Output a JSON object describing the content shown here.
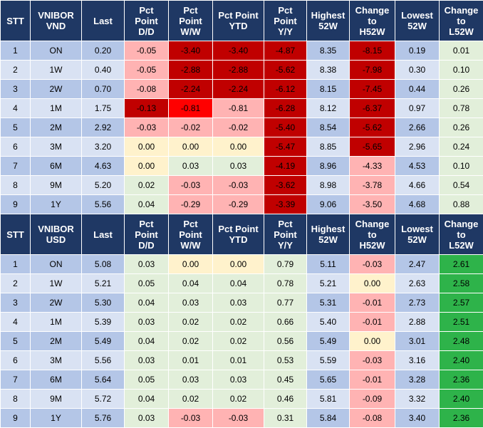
{
  "palette": {
    "header_bg": "#1f3864",
    "header_text": "#ffffff",
    "stripe_dark": "#b4c6e7",
    "stripe_light": "#d9e2f3",
    "neutral_yellow": "#fff2cc",
    "light_green": "#e2efda",
    "light_red": "#ffb3b3",
    "dark_red": "#c00000",
    "bright_red": "#ff0000",
    "bright_green": "#2eb34a"
  },
  "headers": [
    [
      "STT"
    ],
    [
      "VNIBOR",
      "VND"
    ],
    [
      "Last"
    ],
    [
      "Pct",
      "Point",
      "D/D"
    ],
    [
      "Pct",
      "Point",
      "W/W"
    ],
    [
      "Pct Point",
      "YTD"
    ],
    [
      "Pct",
      "Point",
      "Y/Y"
    ],
    [
      "Highest",
      "52W"
    ],
    [
      "Change",
      "to",
      "H52W"
    ],
    [
      "Lowest",
      "52W"
    ],
    [
      "Change",
      "to",
      "L52W"
    ]
  ],
  "headers_usd": [
    [
      "STT"
    ],
    [
      "VNIBOR",
      "USD"
    ],
    [
      "Last"
    ],
    [
      "Pct",
      "Point",
      "D/D"
    ],
    [
      "Pct",
      "Point",
      "W/W"
    ],
    [
      "Pct Point",
      "YTD"
    ],
    [
      "Pct",
      "Point",
      "Y/Y"
    ],
    [
      "Highest",
      "52W"
    ],
    [
      "Change",
      "to",
      "H52W"
    ],
    [
      "Lowest",
      "52W"
    ],
    [
      "Change",
      "to",
      "L52W"
    ]
  ],
  "vnd_rows": [
    {
      "stt": "1",
      "term": "ON",
      "last": "0.20",
      "dd": "-0.05",
      "ww": "-3.40",
      "ytd": "-3.40",
      "yy": "-4.87",
      "high": "8.35",
      "ch": "-8.15",
      "low": "0.19",
      "cl": "0.01"
    },
    {
      "stt": "2",
      "term": "1W",
      "last": "0.40",
      "dd": "-0.05",
      "ww": "-2.88",
      "ytd": "-2.88",
      "yy": "-5.62",
      "high": "8.38",
      "ch": "-7.98",
      "low": "0.30",
      "cl": "0.10"
    },
    {
      "stt": "3",
      "term": "2W",
      "last": "0.70",
      "dd": "-0.08",
      "ww": "-2.24",
      "ytd": "-2.24",
      "yy": "-6.12",
      "high": "8.15",
      "ch": "-7.45",
      "low": "0.44",
      "cl": "0.26"
    },
    {
      "stt": "4",
      "term": "1M",
      "last": "1.75",
      "dd": "-0.13",
      "ww": "-0.81",
      "ytd": "-0.81",
      "yy": "-6.28",
      "high": "8.12",
      "ch": "-6.37",
      "low": "0.97",
      "cl": "0.78"
    },
    {
      "stt": "5",
      "term": "2M",
      "last": "2.92",
      "dd": "-0.03",
      "ww": "-0.02",
      "ytd": "-0.02",
      "yy": "-5.40",
      "high": "8.54",
      "ch": "-5.62",
      "low": "2.66",
      "cl": "0.26"
    },
    {
      "stt": "6",
      "term": "3M",
      "last": "3.20",
      "dd": "0.00",
      "ww": "0.00",
      "ytd": "0.00",
      "yy": "-5.47",
      "high": "8.85",
      "ch": "-5.65",
      "low": "2.96",
      "cl": "0.24"
    },
    {
      "stt": "7",
      "term": "6M",
      "last": "4.63",
      "dd": "0.00",
      "ww": "0.03",
      "ytd": "0.03",
      "yy": "-4.19",
      "high": "8.96",
      "ch": "-4.33",
      "low": "4.53",
      "cl": "0.10"
    },
    {
      "stt": "8",
      "term": "9M",
      "last": "5.20",
      "dd": "0.02",
      "ww": "-0.03",
      "ytd": "-0.03",
      "yy": "-3.62",
      "high": "8.98",
      "ch": "-3.78",
      "low": "4.66",
      "cl": "0.54"
    },
    {
      "stt": "9",
      "term": "1Y",
      "last": "5.56",
      "dd": "0.04",
      "ww": "-0.29",
      "ytd": "-0.29",
      "yy": "-3.39",
      "high": "9.06",
      "ch": "-3.50",
      "low": "4.68",
      "cl": "0.88"
    }
  ],
  "usd_rows": [
    {
      "stt": "1",
      "term": "ON",
      "last": "5.08",
      "dd": "0.03",
      "ww": "0.00",
      "ytd": "0.00",
      "yy": "0.79",
      "high": "5.11",
      "ch": "-0.03",
      "low": "2.47",
      "cl": "2.61"
    },
    {
      "stt": "2",
      "term": "1W",
      "last": "5.21",
      "dd": "0.05",
      "ww": "0.04",
      "ytd": "0.04",
      "yy": "0.78",
      "high": "5.21",
      "ch": "0.00",
      "low": "2.63",
      "cl": "2.58"
    },
    {
      "stt": "3",
      "term": "2W",
      "last": "5.30",
      "dd": "0.04",
      "ww": "0.03",
      "ytd": "0.03",
      "yy": "0.77",
      "high": "5.31",
      "ch": "-0.01",
      "low": "2.73",
      "cl": "2.57"
    },
    {
      "stt": "4",
      "term": "1M",
      "last": "5.39",
      "dd": "0.03",
      "ww": "0.02",
      "ytd": "0.02",
      "yy": "0.66",
      "high": "5.40",
      "ch": "-0.01",
      "low": "2.88",
      "cl": "2.51"
    },
    {
      "stt": "5",
      "term": "2M",
      "last": "5.49",
      "dd": "0.04",
      "ww": "0.02",
      "ytd": "0.02",
      "yy": "0.56",
      "high": "5.49",
      "ch": "0.00",
      "low": "3.01",
      "cl": "2.48"
    },
    {
      "stt": "6",
      "term": "3M",
      "last": "5.56",
      "dd": "0.03",
      "ww": "0.01",
      "ytd": "0.01",
      "yy": "0.53",
      "high": "5.59",
      "ch": "-0.03",
      "low": "3.16",
      "cl": "2.40"
    },
    {
      "stt": "7",
      "term": "6M",
      "last": "5.64",
      "dd": "0.05",
      "ww": "0.03",
      "ytd": "0.03",
      "yy": "0.45",
      "high": "5.65",
      "ch": "-0.01",
      "low": "3.28",
      "cl": "2.36"
    },
    {
      "stt": "8",
      "term": "9M",
      "last": "5.72",
      "dd": "0.04",
      "ww": "0.02",
      "ytd": "0.02",
      "yy": "0.46",
      "high": "5.81",
      "ch": "-0.09",
      "low": "3.32",
      "cl": "2.40"
    },
    {
      "stt": "9",
      "term": "1Y",
      "last": "5.76",
      "dd": "0.03",
      "ww": "-0.03",
      "ytd": "-0.03",
      "yy": "0.31",
      "high": "5.84",
      "ch": "-0.08",
      "low": "3.40",
      "cl": "2.36"
    }
  ],
  "vnd_colors": [
    [
      "light_red",
      "dark_red",
      "dark_red",
      "dark_red",
      "dark_red",
      "light_green"
    ],
    [
      "light_red",
      "dark_red",
      "dark_red",
      "dark_red",
      "dark_red",
      "light_green"
    ],
    [
      "light_red",
      "dark_red",
      "dark_red",
      "dark_red",
      "dark_red",
      "light_green"
    ],
    [
      "dark_red",
      "bright_red",
      "light_red",
      "dark_red",
      "dark_red",
      "light_green"
    ],
    [
      "light_red",
      "light_red",
      "light_red",
      "dark_red",
      "dark_red",
      "light_green"
    ],
    [
      "neutral_yellow",
      "neutral_yellow",
      "neutral_yellow",
      "dark_red",
      "dark_red",
      "light_green"
    ],
    [
      "neutral_yellow",
      "light_green",
      "light_green",
      "dark_red",
      "light_red",
      "light_green"
    ],
    [
      "light_green",
      "light_red",
      "light_red",
      "dark_red",
      "light_red",
      "light_green"
    ],
    [
      "light_green",
      "light_red",
      "light_red",
      "dark_red",
      "light_red",
      "light_green"
    ]
  ],
  "usd_colors": [
    [
      "light_green",
      "neutral_yellow",
      "neutral_yellow",
      "light_green",
      "light_red",
      "bright_green"
    ],
    [
      "light_green",
      "light_green",
      "light_green",
      "light_green",
      "neutral_yellow",
      "bright_green"
    ],
    [
      "light_green",
      "light_green",
      "light_green",
      "light_green",
      "light_red",
      "bright_green"
    ],
    [
      "light_green",
      "light_green",
      "light_green",
      "light_green",
      "light_red",
      "bright_green"
    ],
    [
      "light_green",
      "light_green",
      "light_green",
      "light_green",
      "neutral_yellow",
      "bright_green"
    ],
    [
      "light_green",
      "light_green",
      "light_green",
      "light_green",
      "light_red",
      "bright_green"
    ],
    [
      "light_green",
      "light_green",
      "light_green",
      "light_green",
      "light_red",
      "bright_green"
    ],
    [
      "light_green",
      "light_green",
      "light_green",
      "light_green",
      "light_red",
      "bright_green"
    ],
    [
      "light_green",
      "light_red",
      "light_red",
      "light_green",
      "light_red",
      "bright_green"
    ]
  ]
}
